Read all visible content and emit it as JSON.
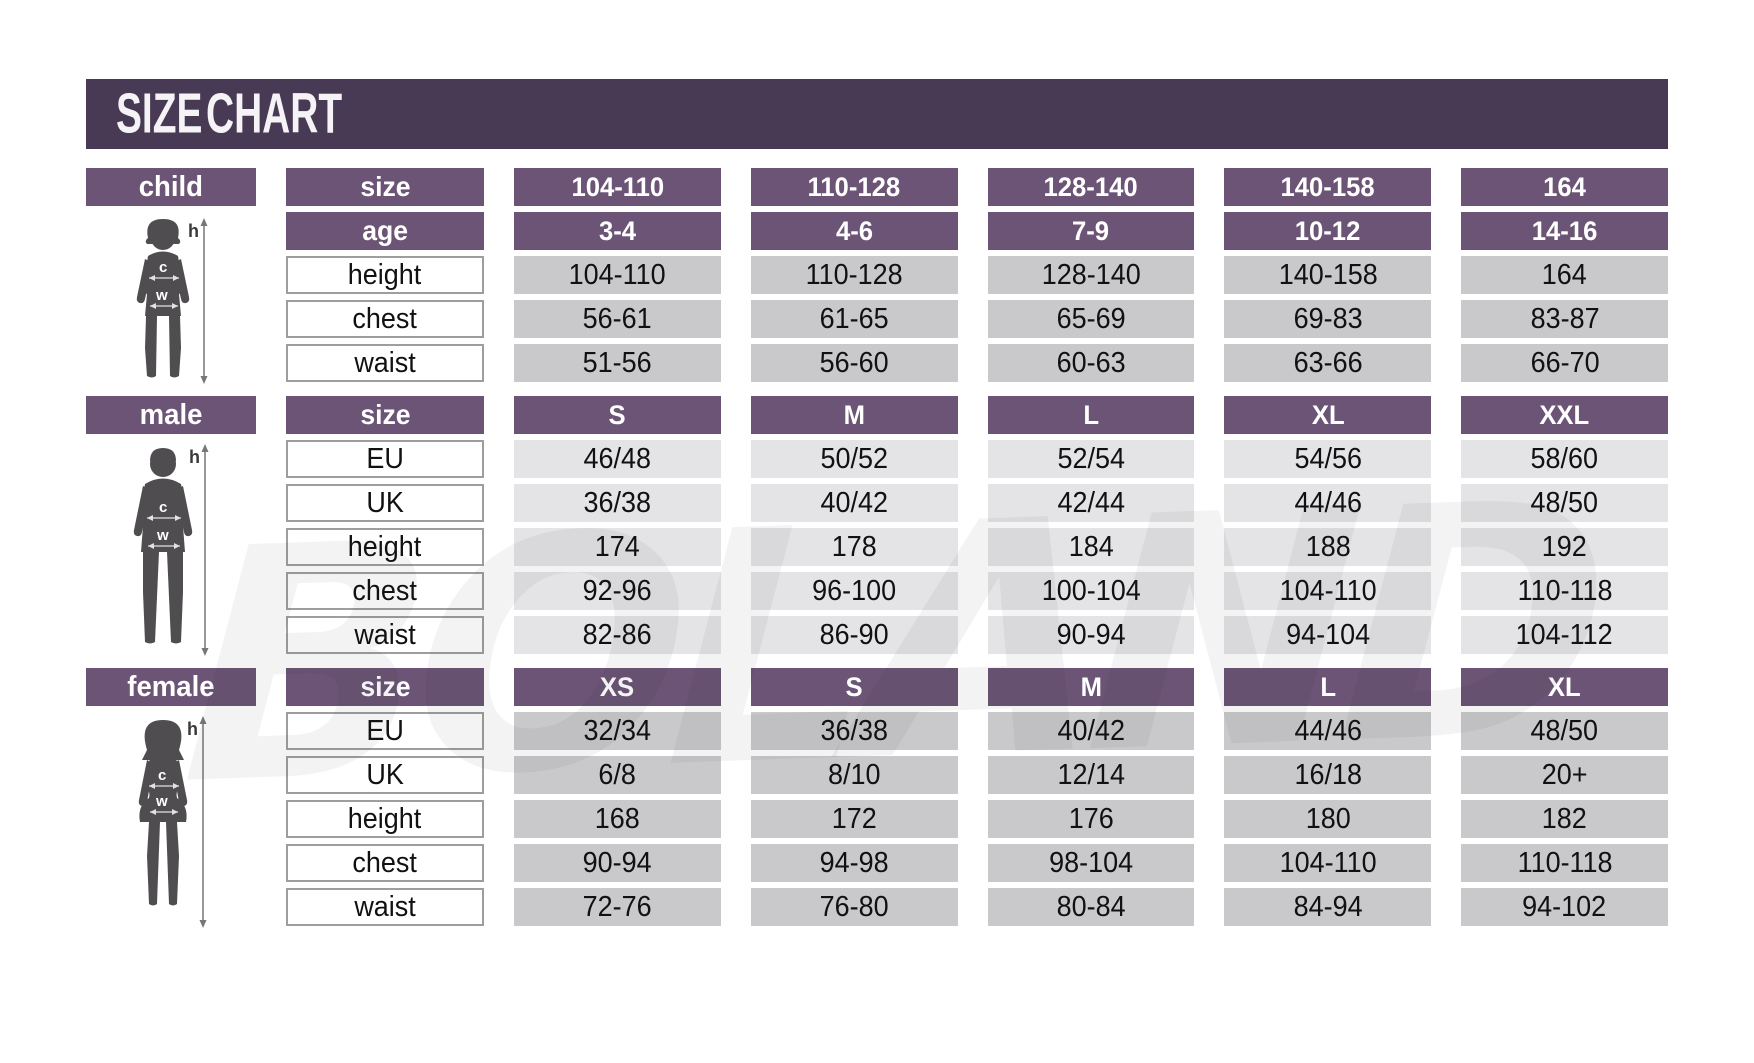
{
  "title": "SIZE CHART",
  "watermark": "BOLAND",
  "figure_labels": {
    "height": "h",
    "chest": "c",
    "waist": "w"
  },
  "colors": {
    "banner_purple": "#483a54",
    "header_purple": "#6b5475",
    "cell_gray": "#c9c8ca",
    "cell_light_gray": "#e4e3e5",
    "figure_gray": "#4f4d50",
    "background": "#ffffff"
  },
  "chart_data": {
    "type": "table",
    "tables": [
      {
        "id": "child",
        "label": "child",
        "cell_color": "#c9c8ca",
        "header_rows": [
          {
            "label": "size",
            "values": [
              "104-110",
              "110-128",
              "128-140",
              "140-158",
              "164"
            ]
          },
          {
            "label": "age",
            "values": [
              "3-4",
              "4-6",
              "7-9",
              "10-12",
              "14-16"
            ]
          }
        ],
        "data_rows": [
          {
            "label": "height",
            "values": [
              "104-110",
              "110-128",
              "128-140",
              "140-158",
              "164"
            ]
          },
          {
            "label": "chest",
            "values": [
              "56-61",
              "61-65",
              "65-69",
              "69-83",
              "83-87"
            ]
          },
          {
            "label": "waist",
            "values": [
              "51-56",
              "56-60",
              "60-63",
              "63-66",
              "66-70"
            ]
          }
        ]
      },
      {
        "id": "male",
        "label": "male",
        "cell_color": "#e4e3e5",
        "header_rows": [
          {
            "label": "size",
            "values": [
              "S",
              "M",
              "L",
              "XL",
              "XXL"
            ]
          }
        ],
        "data_rows": [
          {
            "label": "EU",
            "values": [
              "46/48",
              "50/52",
              "52/54",
              "54/56",
              "58/60"
            ]
          },
          {
            "label": "UK",
            "values": [
              "36/38",
              "40/42",
              "42/44",
              "44/46",
              "48/50"
            ]
          },
          {
            "label": "height",
            "values": [
              "174",
              "178",
              "184",
              "188",
              "192"
            ]
          },
          {
            "label": "chest",
            "values": [
              "92-96",
              "96-100",
              "100-104",
              "104-110",
              "110-118"
            ]
          },
          {
            "label": "waist",
            "values": [
              "82-86",
              "86-90",
              "90-94",
              "94-104",
              "104-112"
            ]
          }
        ]
      },
      {
        "id": "female",
        "label": "female",
        "cell_color": "#c9c8ca",
        "header_rows": [
          {
            "label": "size",
            "values": [
              "XS",
              "S",
              "M",
              "L",
              "XL"
            ]
          }
        ],
        "data_rows": [
          {
            "label": "EU",
            "values": [
              "32/34",
              "36/38",
              "40/42",
              "44/46",
              "48/50"
            ]
          },
          {
            "label": "UK",
            "values": [
              "6/8",
              "8/10",
              "12/14",
              "16/18",
              "20+"
            ]
          },
          {
            "label": "height",
            "values": [
              "168",
              "172",
              "176",
              "180",
              "182"
            ]
          },
          {
            "label": "chest",
            "values": [
              "90-94",
              "94-98",
              "98-104",
              "104-110",
              "110-118"
            ]
          },
          {
            "label": "waist",
            "values": [
              "72-76",
              "76-80",
              "80-84",
              "84-94",
              "94-102"
            ]
          }
        ]
      }
    ]
  }
}
